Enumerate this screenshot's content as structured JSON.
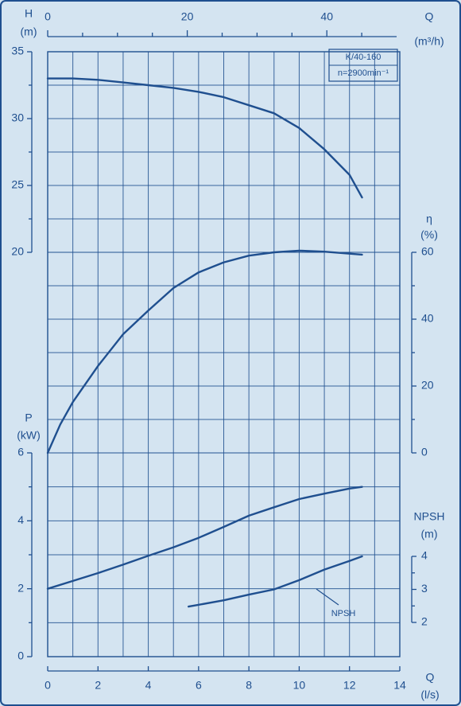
{
  "chart_data": {
    "type": "line",
    "color": "#1f4f8f",
    "background": "#d4e4f1",
    "grid": true,
    "x_label": "Q",
    "x_unit": "(l/s)",
    "x2_label": "Q",
    "x2_unit": "(m³/h)",
    "y_label": "H",
    "y_unit": "(m)",
    "y2_label": "η",
    "y2_unit": "(%)",
    "y3_label": "P",
    "y3_unit": "(kW)",
    "y4_label": "NPSH",
    "y4_unit": "(m)",
    "legend": [
      "K/40-160",
      "n=2900min⁻¹"
    ],
    "xlim": [
      0,
      14
    ],
    "xticks": [
      0,
      2,
      4,
      6,
      8,
      10,
      12,
      14
    ],
    "x2lim": [
      0,
      50
    ],
    "x2ticks": [
      0,
      20,
      40
    ],
    "ylim": [
      20,
      35
    ],
    "yticks": [
      20,
      25,
      30,
      35
    ],
    "y2lim": [
      0,
      60
    ],
    "y2ticks": [
      0,
      20,
      40,
      60
    ],
    "y3lim": [
      0,
      6
    ],
    "y3ticks": [
      0,
      2,
      4,
      6
    ],
    "y4lim": [
      2,
      4
    ],
    "y4ticks": [
      2,
      3,
      4
    ],
    "series": [
      {
        "axis": "y",
        "x": [
          0,
          1,
          2,
          3,
          4,
          5,
          6,
          7,
          8,
          9,
          10,
          11,
          12,
          12.5
        ],
        "values": [
          33.0,
          33.0,
          32.9,
          32.7,
          32.5,
          32.3,
          32.0,
          31.6,
          31.0,
          30.4,
          29.3,
          27.7,
          25.8,
          24.1
        ]
      },
      {
        "axis": "y2",
        "x": [
          0,
          0.5,
          1,
          2,
          3,
          4,
          5,
          6,
          7,
          8,
          9,
          10,
          11,
          12,
          12.5
        ],
        "values": [
          0,
          8.5,
          15.2,
          26,
          35.5,
          42.6,
          49.3,
          54,
          57,
          59,
          60,
          60.5,
          60.2,
          59.6,
          59.3
        ]
      },
      {
        "axis": "y3",
        "x": [
          0,
          1,
          2,
          3,
          4,
          5,
          6,
          7,
          8,
          9,
          10,
          11,
          12,
          12.5
        ],
        "values": [
          2.0,
          2.23,
          2.46,
          2.71,
          2.97,
          3.22,
          3.5,
          3.82,
          4.15,
          4.4,
          4.64,
          4.8,
          4.95,
          5.0
        ]
      },
      {
        "axis": "y4",
        "name": "NPSH",
        "x": [
          5.6,
          7,
          8,
          9,
          10,
          11,
          12,
          12.5
        ],
        "values": [
          2.48,
          2.67,
          2.84,
          3.0,
          3.28,
          3.6,
          3.86,
          4.0
        ]
      }
    ]
  }
}
